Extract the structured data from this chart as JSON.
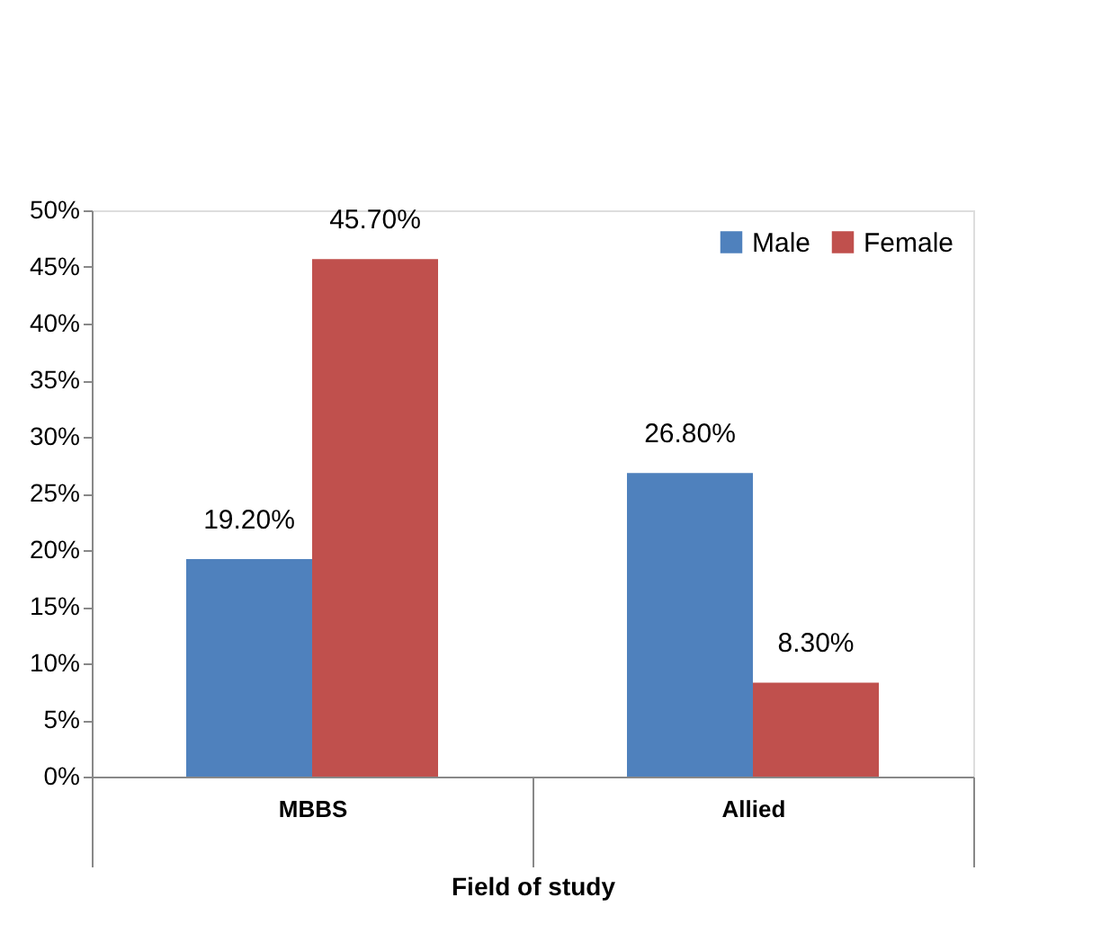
{
  "chart_data": {
    "type": "bar",
    "xlabel": "Field of study",
    "categories": [
      "MBBS",
      "Allied"
    ],
    "series": [
      {
        "name": "Male",
        "color": "#4f81bd",
        "values": [
          19.2,
          26.8
        ],
        "value_labels": [
          "19.20%",
          "26.80%"
        ]
      },
      {
        "name": "Female",
        "color": "#c0504d",
        "values": [
          45.7,
          8.3
        ],
        "value_labels": [
          "45.70%",
          "8.30%"
        ]
      }
    ],
    "ylim": [
      0,
      50
    ],
    "yticks": [
      {
        "value": 0,
        "label": "0%"
      },
      {
        "value": 5,
        "label": "5%"
      },
      {
        "value": 10,
        "label": "10%"
      },
      {
        "value": 15,
        "label": "15%"
      },
      {
        "value": 20,
        "label": "20%"
      },
      {
        "value": 25,
        "label": "25%"
      },
      {
        "value": 30,
        "label": "30%"
      },
      {
        "value": 35,
        "label": "35%"
      },
      {
        "value": 40,
        "label": "40%"
      },
      {
        "value": 45,
        "label": "45%"
      },
      {
        "value": 50,
        "label": "50%"
      }
    ],
    "legend": "top right",
    "grid": false
  }
}
